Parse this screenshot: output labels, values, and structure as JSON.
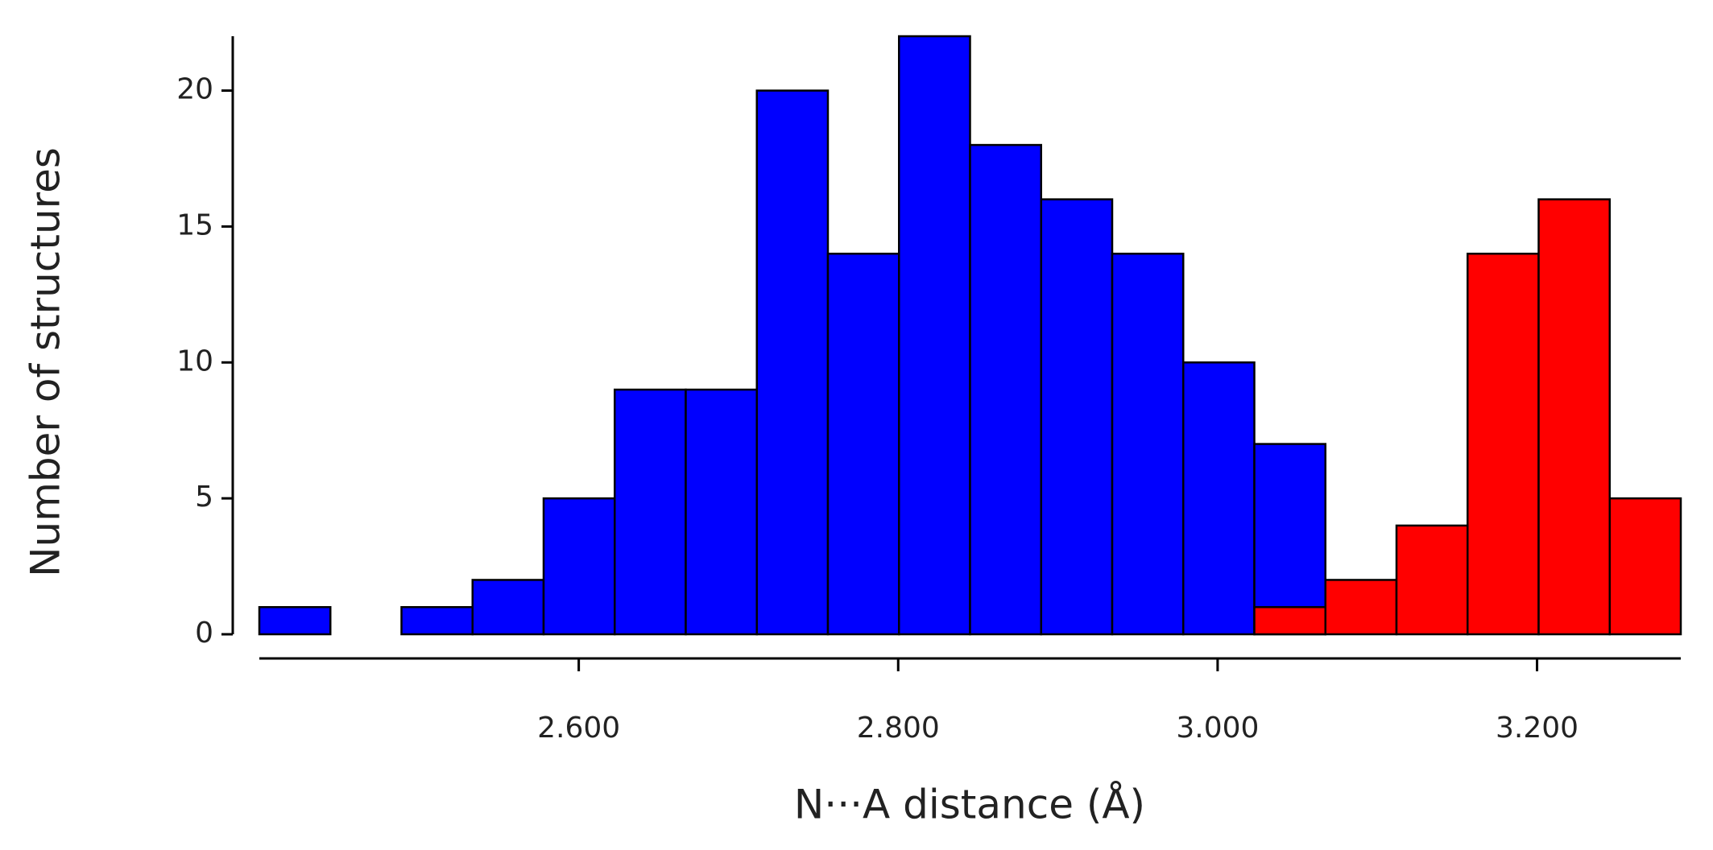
{
  "chart_data": {
    "type": "histogram",
    "x_label": "N···A distance (Å)",
    "y_label": "Number of structures",
    "bins": [
      2.4,
      2.4445,
      2.489,
      2.5335,
      2.578,
      2.6225,
      2.667,
      2.7115,
      2.756,
      2.8005,
      2.845,
      2.8895,
      2.934,
      2.9785,
      3.023,
      3.0675,
      3.112,
      3.1565,
      3.201,
      3.2455,
      3.29
    ],
    "series": [
      {
        "color": "#0000ff",
        "values": [
          1,
          0,
          1,
          2,
          5,
          9,
          9,
          20,
          14,
          22,
          18,
          16,
          14,
          10,
          7,
          0,
          0,
          0,
          0,
          0
        ]
      },
      {
        "color": "#ff0000",
        "values": [
          0,
          0,
          0,
          0,
          0,
          0,
          0,
          0,
          0,
          0,
          0,
          0,
          0,
          0,
          1,
          2,
          4,
          14,
          16,
          5
        ]
      }
    ],
    "xlim": [
      2.4,
      3.29
    ],
    "xticks": [
      {
        "value": 2.6,
        "label": "2.600"
      },
      {
        "value": 2.8,
        "label": "2.800"
      },
      {
        "value": 3.0,
        "label": "3.000"
      },
      {
        "value": 3.2,
        "label": "3.200"
      }
    ],
    "ylim": [
      0,
      22
    ],
    "yticks": [
      0,
      5,
      10,
      15,
      20
    ]
  }
}
